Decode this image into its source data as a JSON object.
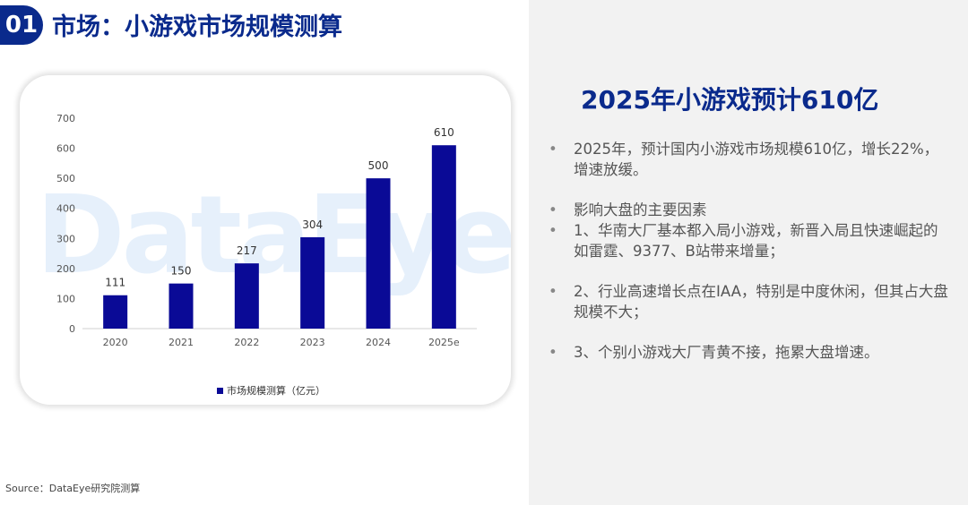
{
  "section": {
    "number": "01",
    "title": "市场：小游戏市场规模测算"
  },
  "right": {
    "headline": "2025年小游戏预计610亿",
    "bullets": [
      "2025年，预计国内小游戏市场规模610亿，增长22%，增速放缓。",
      "影响大盘的主要因素",
      "1、华南大厂基本都入局小游戏，新晋入局且快速崛起的如雷霆、9377、B站带来增量；",
      "2、行业高速增长点在IAA，特别是中度休闲，但其占大盘规模不大；",
      "3、个别小游戏大厂青黄不接，拖累大盘增速。"
    ]
  },
  "source": "Source：DataEye研究院测算",
  "watermark": "DataEye",
  "chart_data": {
    "type": "bar",
    "categories": [
      "2020",
      "2021",
      "2022",
      "2023",
      "2024",
      "2025e"
    ],
    "series": [
      {
        "name": "市场规模测算（亿元）",
        "values": [
          111,
          150,
          217,
          304,
          500,
          610
        ]
      }
    ],
    "yticks": [
      "0",
      "100",
      "200",
      "300",
      "400",
      "500",
      "600",
      "700"
    ],
    "ylim": [
      0,
      700
    ],
    "grid": false,
    "legend_position": "bottom",
    "bar_color": "#0a0a96"
  }
}
